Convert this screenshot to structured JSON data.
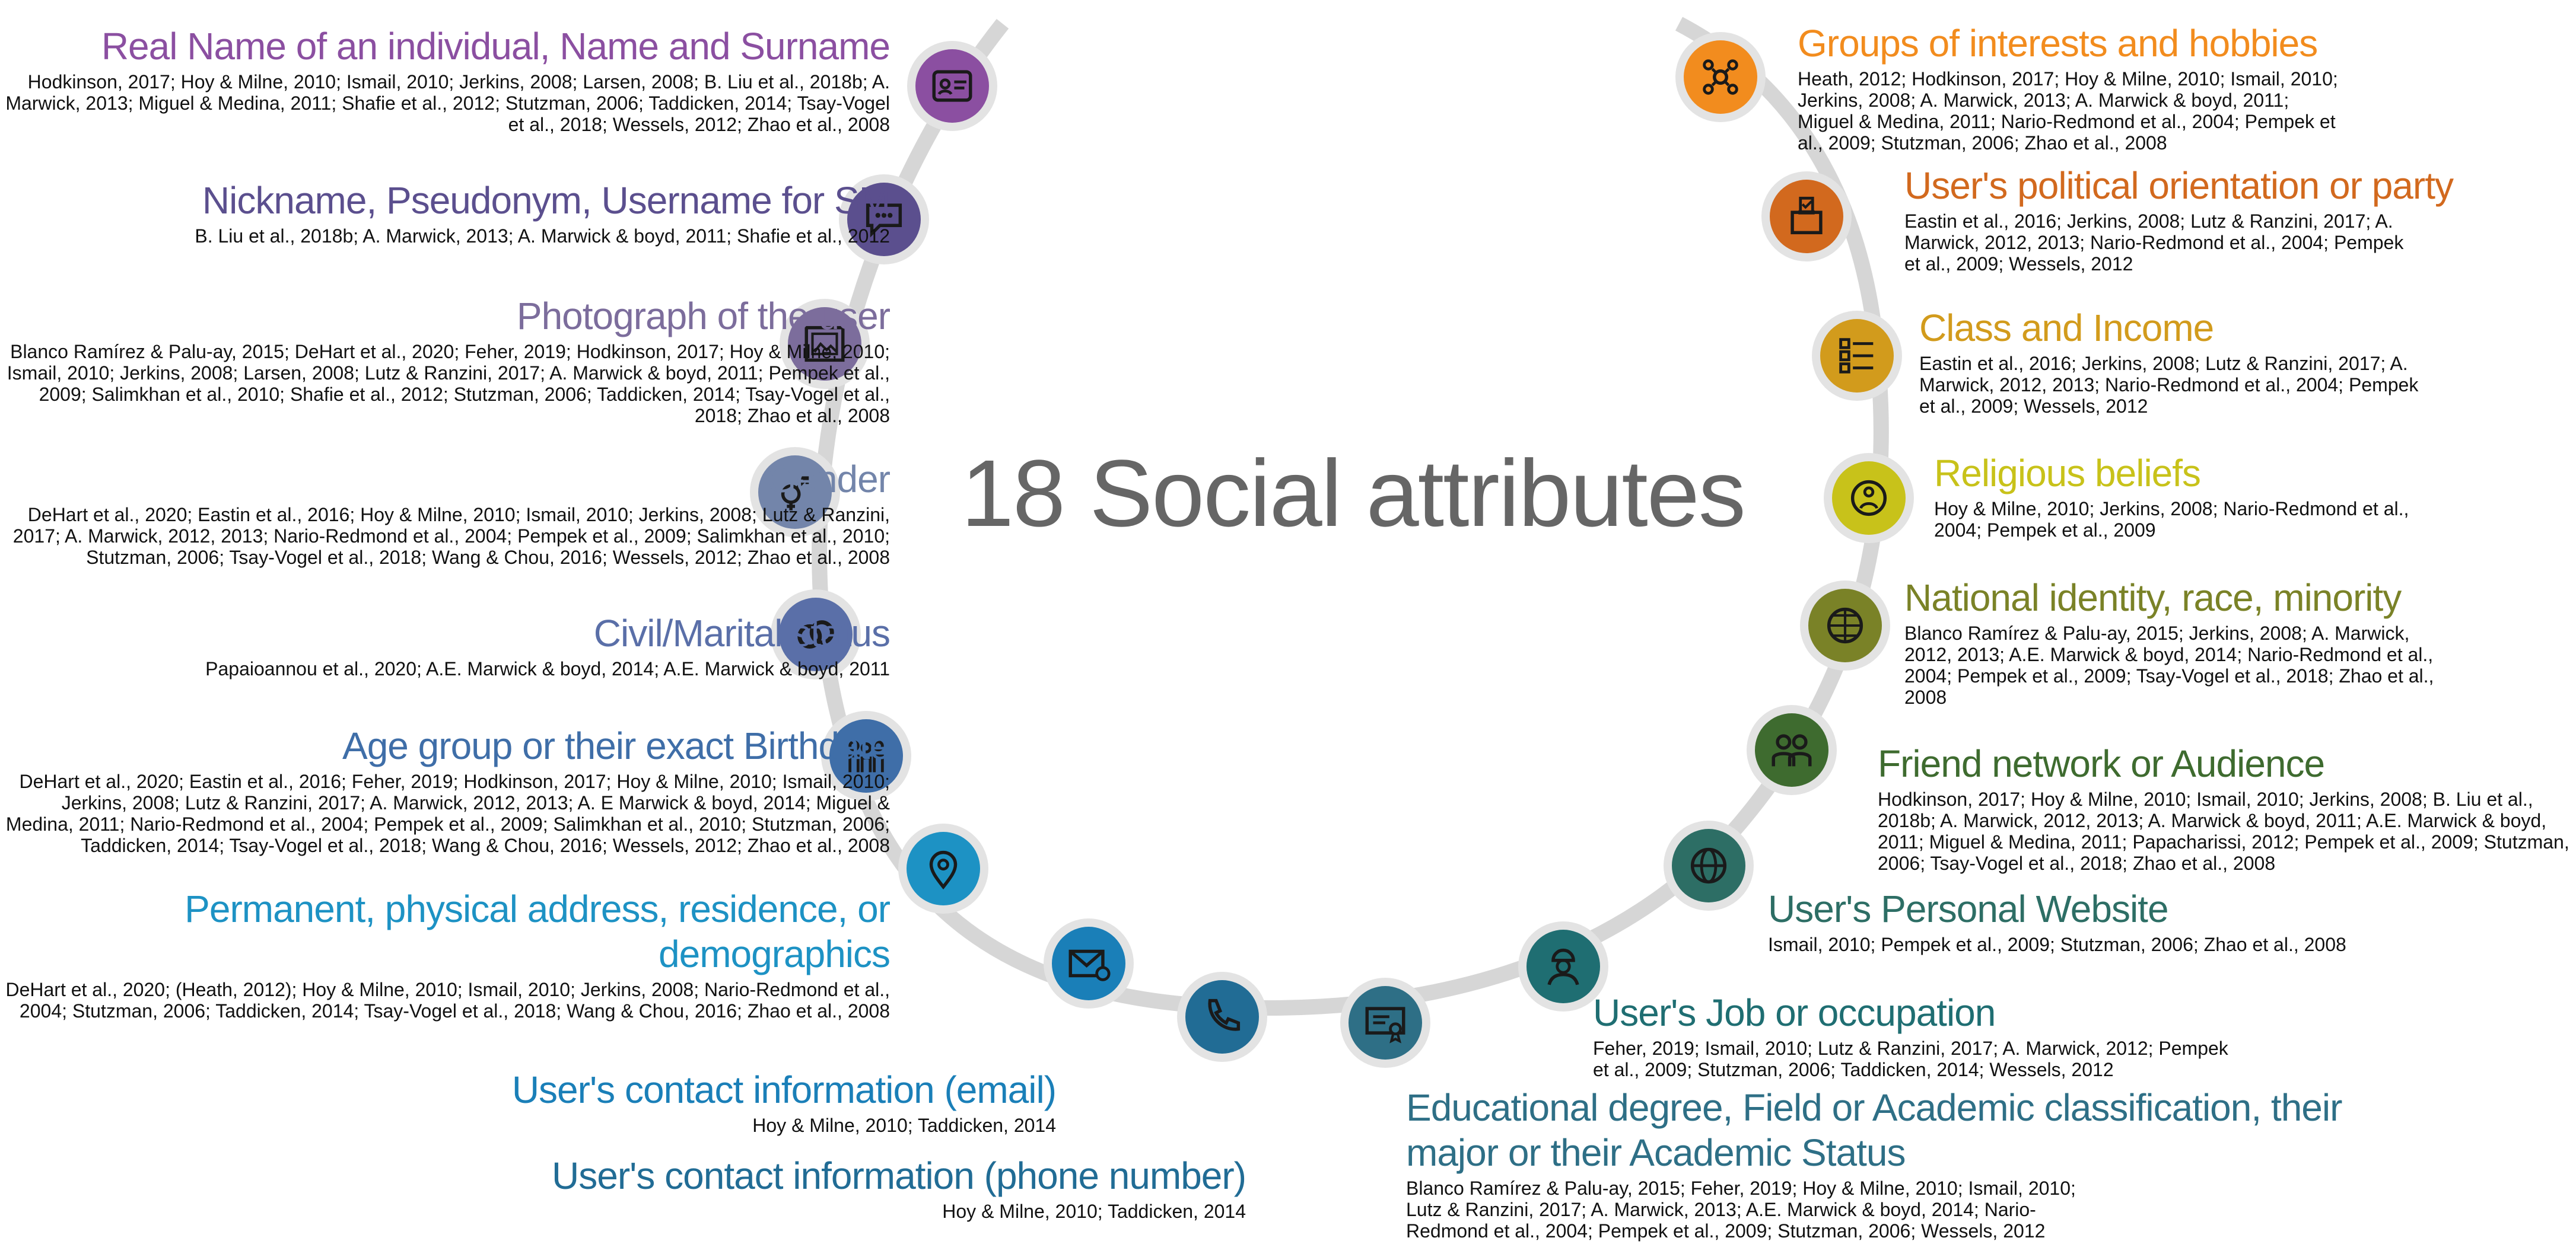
{
  "title": "18 Social attributes",
  "attributes": [
    {
      "name": "Real Name of an individual, Name and Surname",
      "color": "#8b4fa1",
      "icon": "id-card-icon",
      "refs": "Hodkinson, 2017; Hoy & Milne, 2010; Ismail, 2010; Jerkins, 2008; Larsen, 2008; B. Liu et al., 2018b; A. Marwick, 2013; Miguel & Medina, 2011; Shafie et al., 2012; Stutzman, 2006; Taddicken, 2014; Tsay-Vogel et al., 2018; Wessels, 2012; Zhao et al., 2008"
    },
    {
      "name": "Nickname, Pseudonym, Username for SM",
      "color": "#5b4f8e",
      "icon": "chat-bubble-icon",
      "refs": "B. Liu et al., 2018b; A. Marwick, 2013; A. Marwick & boyd, 2011; Shafie et al., 2012"
    },
    {
      "name": "Photograph of the user",
      "color": "#7c6d9c",
      "icon": "photo-frame-icon",
      "refs": "Blanco Ramírez & Palu-ay, 2015; DeHart et al., 2020; Feher, 2019; Hodkinson, 2017; Hoy & Milne, 2010; Ismail, 2010; Jerkins, 2008; Larsen, 2008; Lutz & Ranzini, 2017; A. Marwick & boyd, 2011; Pempek et al., 2009; Salimkhan et al., 2010; Shafie et al., 2012; Stutzman, 2006; Taddicken, 2014; Tsay-Vogel et al., 2018; Zhao et al., 2008"
    },
    {
      "name": "Gender",
      "color": "#7385aa",
      "icon": "gender-icon",
      "refs": "DeHart et al., 2020; Eastin et al., 2016; Hoy & Milne, 2010; Ismail, 2010; Jerkins, 2008; Lutz & Ranzini, 2017; A. Marwick, 2012, 2013; Nario-Redmond et al., 2004; Pempek et al., 2009; Salimkhan et al., 2010; Stutzman, 2006; Tsay-Vogel et al., 2018; Wang & Chou, 2016; Wessels, 2012; Zhao et al., 2008"
    },
    {
      "name": "Civil/Marital status",
      "color": "#5a6fa8",
      "icon": "rings-icon",
      "refs": "Papaioannou et al., 2020; A.E. Marwick & boyd, 2014; A.E. Marwick & boyd, 2011"
    },
    {
      "name": "Age group or their exact Birthdate",
      "color": "#3f6ea8",
      "icon": "family-icon",
      "refs": "DeHart et al., 2020; Eastin et al., 2016; Feher, 2019; Hodkinson, 2017; Hoy & Milne, 2010; Ismail, 2010; Jerkins, 2008; Lutz & Ranzini, 2017; A. Marwick, 2012, 2013; A. E Marwick & boyd, 2014; Miguel & Medina, 2011; Nario-Redmond et al., 2004; Pempek et al., 2009; Salimkhan et al., 2010; Stutzman, 2006; Taddicken, 2014; Tsay-Vogel et al., 2018; Wang & Chou, 2016; Wessels, 2012; Zhao et al., 2008"
    },
    {
      "name": "Permanent, physical address, residence, or demographics",
      "color": "#1d92c4",
      "icon": "location-pin-icon",
      "refs": "DeHart et al., 2020; (Heath, 2012); Hoy & Milne, 2010; Ismail, 2010; Jerkins, 2008; Nario-Redmond et al., 2004; Stutzman, 2006; Taddicken, 2014; Tsay-Vogel et al., 2018; Wang & Chou, 2016; Zhao et al., 2008"
    },
    {
      "name": "User's contact information (email)",
      "color": "#1a7fb8",
      "icon": "email-icon",
      "refs": "Hoy & Milne, 2010; Taddicken, 2014"
    },
    {
      "name": "User's contact information (phone number)",
      "color": "#216c95",
      "icon": "phone-icon",
      "refs": "Hoy & Milne, 2010; Taddicken, 2014"
    },
    {
      "name": "Educational degree, Field or Academic classification, their major or their Academic Status",
      "color": "#2e6f86",
      "icon": "certificate-icon",
      "refs": "Blanco Ramírez & Palu-ay, 2015; Feher, 2019; Hoy & Milne, 2010; Ismail, 2010; Lutz & Ranzini, 2017; A. Marwick, 2013; A.E. Marwick & boyd, 2014; Nario-Redmond et al., 2004; Pempek et al., 2009; Stutzman, 2006; Wessels, 2012"
    },
    {
      "name": "User's Job or occupation",
      "color": "#1f6e72",
      "icon": "worker-icon",
      "refs": "Feher, 2019; Ismail, 2010; Lutz & Ranzini, 2017; A. Marwick, 2012; Pempek et al., 2009; Stutzman, 2006; Taddicken, 2014; Wessels, 2012"
    },
    {
      "name": "User's Personal Website",
      "color": "#2d6e65",
      "icon": "globe-icon",
      "refs": "Ismail, 2010; Pempek et al., 2009; Stutzman, 2006; Zhao et al., 2008"
    },
    {
      "name": "Friend network or Audience",
      "color": "#3e6b2f",
      "icon": "friends-icon",
      "refs": "Hodkinson, 2017; Hoy & Milne, 2010; Ismail, 2010; Jerkins, 2008; B. Liu et al., 2018b; A. Marwick, 2012, 2013; A. Marwick & boyd, 2011; A.E. Marwick & boyd, 2011; Miguel & Medina, 2011; Papacharissi, 2012; Pempek et al., 2009; Stutzman, 2006; Tsay-Vogel et al., 2018; Zhao et al., 2008"
    },
    {
      "name": "National identity, race, minority",
      "color": "#7a8227",
      "icon": "world-people-icon",
      "refs": "Blanco Ramírez & Palu-ay, 2015; Jerkins, 2008; A. Marwick, 2012, 2013; A.E. Marwick & boyd, 2014; Nario-Redmond et al., 2004; Pempek et al., 2009; Tsay-Vogel et al., 2018; Zhao et al., 2008"
    },
    {
      "name": "Religious beliefs",
      "color": "#c8c21a",
      "icon": "prayer-icon",
      "refs": "Hoy & Milne, 2010; Jerkins, 2008; Nario-Redmond et al., 2004; Pempek et al., 2009"
    },
    {
      "name": "Class and Income",
      "color": "#d29b1c",
      "icon": "checklist-icon",
      "refs": "Eastin et al., 2016; Jerkins, 2008; Lutz & Ranzini, 2017; A. Marwick, 2012, 2013; Nario-Redmond et al., 2004; Pempek et al., 2009; Wessels, 2012"
    },
    {
      "name": "User's political orientation or party",
      "color": "#d2691e",
      "icon": "ballot-icon",
      "refs": "Eastin et al., 2016; Jerkins, 2008; Lutz & Ranzini, 2017; A. Marwick, 2012, 2013; Nario-Redmond et al., 2004; Pempek et al., 2009; Wessels, 2012"
    },
    {
      "name": "Groups of interests and hobbies",
      "color": "#f28c1e",
      "icon": "hobbies-icon",
      "refs": "Heath, 2012; Hodkinson, 2017; Hoy & Milne, 2010; Ismail, 2010; Jerkins, 2008; A. Marwick, 2013; A. Marwick & boyd, 2011; Miguel & Medina, 2011; Nario-Redmond et al., 2004; Pempek et al., 2009; Stutzman, 2006; Zhao et al., 2008"
    }
  ]
}
